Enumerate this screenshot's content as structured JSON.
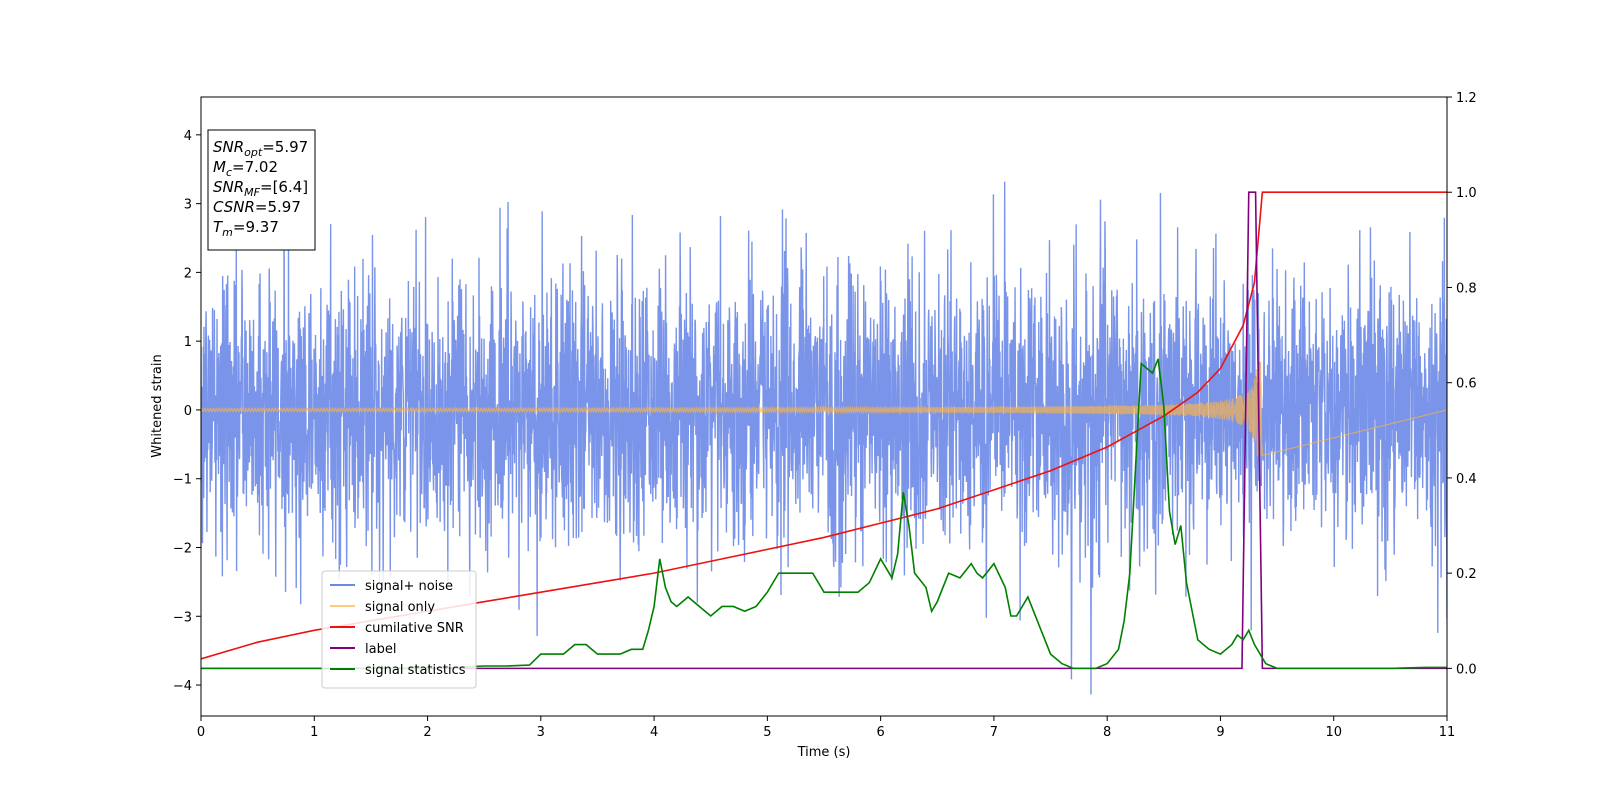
{
  "chart_data": {
    "type": "line",
    "title": "",
    "xlabel": "Time (s)",
    "ylabel": "Whitened strain",
    "xlim": [
      0,
      11
    ],
    "ylim": [
      -4.45,
      4.55
    ],
    "y2lim": [
      -0.1,
      1.2
    ],
    "x_ticks": [
      0,
      1,
      2,
      3,
      4,
      5,
      6,
      7,
      8,
      9,
      10,
      11
    ],
    "y_ticks": [
      -4,
      -3,
      -2,
      -1,
      0,
      1,
      2,
      3,
      4
    ],
    "y_tick_labels": [
      "−4",
      "−3",
      "−2",
      "−1",
      "0",
      "1",
      "2",
      "3",
      "4"
    ],
    "y2_ticks": [
      0.0,
      0.2,
      0.4,
      0.6,
      0.8,
      1.0,
      1.2
    ],
    "y2_tick_labels": [
      "0.0",
      "0.2",
      "0.4",
      "0.6",
      "0.8",
      "1.0",
      "1.2"
    ],
    "grid": false,
    "legend_position": "lower-left",
    "info_box": {
      "lines": [
        {
          "base": "SNR",
          "sub": "opt",
          "value": "=5.97"
        },
        {
          "base": "M",
          "sub": "c",
          "value": "=7.02"
        },
        {
          "base": "SNR",
          "sub": "MF",
          "value": "=[6.4]"
        },
        {
          "base": "CSNR",
          "sub": "",
          "value": "=5.97"
        },
        {
          "base": "T",
          "sub": "m",
          "value": "=9.37"
        }
      ]
    },
    "series": [
      {
        "name": "signal+ noise",
        "axis": "left",
        "color": "#6a88e6",
        "style": "noise",
        "sigma": 1.0,
        "duration": 11
      },
      {
        "name": "signal only",
        "axis": "left",
        "color": "#ffb347",
        "style": "chirp",
        "merger_time": 9.37,
        "peak_amplitude": 0.7
      },
      {
        "name": "cumilative SNR",
        "axis": "right",
        "color": "#ee1111",
        "style": "cumulative",
        "x": [
          0,
          0.5,
          1,
          1.5,
          2,
          2.5,
          3,
          3.5,
          4,
          4.5,
          5,
          5.5,
          6,
          6.5,
          7,
          7.5,
          8,
          8.5,
          8.8,
          9,
          9.2,
          9.3,
          9.37,
          11
        ],
        "y": [
          0.02,
          0.055,
          0.08,
          0.1,
          0.12,
          0.14,
          0.16,
          0.18,
          0.2,
          0.225,
          0.25,
          0.275,
          0.305,
          0.335,
          0.375,
          0.415,
          0.465,
          0.53,
          0.58,
          0.63,
          0.72,
          0.81,
          1.0,
          1.0
        ]
      },
      {
        "name": "label",
        "axis": "right",
        "color": "#800080",
        "style": "step",
        "x": [
          0,
          9.19,
          9.25,
          9.31,
          9.37,
          11
        ],
        "y": [
          0,
          0,
          1.0,
          1.0,
          0,
          0
        ]
      },
      {
        "name": "signal statistics",
        "axis": "right",
        "color": "#008000",
        "style": "line",
        "x": [
          0,
          0.5,
          1,
          1.5,
          2,
          2.5,
          2.7,
          2.9,
          3.0,
          3.1,
          3.2,
          3.3,
          3.35,
          3.4,
          3.5,
          3.6,
          3.7,
          3.8,
          3.9,
          3.95,
          4.0,
          4.05,
          4.1,
          4.15,
          4.2,
          4.3,
          4.4,
          4.5,
          4.6,
          4.7,
          4.8,
          4.9,
          5.0,
          5.1,
          5.2,
          5.3,
          5.4,
          5.5,
          5.6,
          5.7,
          5.8,
          5.9,
          6.0,
          6.1,
          6.15,
          6.2,
          6.25,
          6.3,
          6.4,
          6.45,
          6.5,
          6.6,
          6.7,
          6.8,
          6.85,
          6.9,
          7.0,
          7.1,
          7.15,
          7.2,
          7.3,
          7.4,
          7.5,
          7.6,
          7.7,
          7.8,
          7.9,
          8.0,
          8.1,
          8.15,
          8.2,
          8.25,
          8.3,
          8.35,
          8.4,
          8.45,
          8.5,
          8.55,
          8.6,
          8.65,
          8.7,
          8.75,
          8.8,
          8.9,
          9.0,
          9.1,
          9.15,
          9.2,
          9.25,
          9.3,
          9.35,
          9.4,
          9.5,
          9.6,
          10,
          10.5,
          10.8,
          11
        ],
        "y": [
          0.0,
          0.0,
          0.0,
          0.0,
          0.0,
          0.005,
          0.005,
          0.007,
          0.03,
          0.03,
          0.03,
          0.05,
          0.05,
          0.05,
          0.03,
          0.03,
          0.03,
          0.04,
          0.04,
          0.08,
          0.13,
          0.23,
          0.17,
          0.14,
          0.13,
          0.15,
          0.13,
          0.11,
          0.13,
          0.13,
          0.12,
          0.13,
          0.16,
          0.2,
          0.2,
          0.2,
          0.2,
          0.16,
          0.16,
          0.16,
          0.16,
          0.18,
          0.23,
          0.19,
          0.24,
          0.37,
          0.3,
          0.2,
          0.17,
          0.12,
          0.14,
          0.2,
          0.19,
          0.22,
          0.2,
          0.19,
          0.22,
          0.17,
          0.11,
          0.11,
          0.15,
          0.09,
          0.03,
          0.01,
          0.0,
          0.0,
          0.0,
          0.01,
          0.04,
          0.1,
          0.2,
          0.42,
          0.64,
          0.63,
          0.62,
          0.65,
          0.55,
          0.33,
          0.26,
          0.3,
          0.18,
          0.12,
          0.06,
          0.04,
          0.03,
          0.05,
          0.07,
          0.06,
          0.08,
          0.05,
          0.03,
          0.01,
          0.0,
          0.0,
          0.0,
          0.0,
          0.002,
          0.002
        ]
      }
    ]
  }
}
